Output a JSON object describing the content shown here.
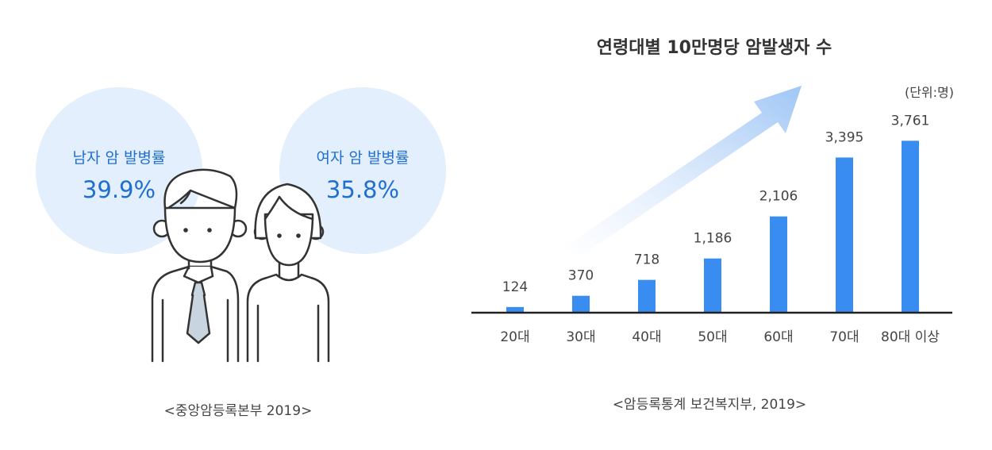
{
  "figures": {
    "male": {
      "label": "남자 암 발병률",
      "rate": "39.9%"
    },
    "female": {
      "label": "여자 암 발병률",
      "rate": "35.8%"
    },
    "source": "<중앙암등록본부 2019>"
  },
  "chart_data": {
    "type": "bar",
    "title": "연령대별 10만명당 암발생자 수",
    "unit_label": "(단위:명)",
    "categories": [
      "20대",
      "30대",
      "40대",
      "50대",
      "60대",
      "70대",
      "80대 이상"
    ],
    "values": [
      124,
      370,
      718,
      1186,
      2106,
      3395,
      3761
    ],
    "value_labels": [
      "124",
      "370",
      "718",
      "1,186",
      "2,106",
      "3,395",
      "3,761"
    ],
    "ylim": [
      0,
      4200
    ],
    "grid": false,
    "source": "<암등록통계 보건복지부, 2019>",
    "bar_color": "#3a8df0"
  }
}
